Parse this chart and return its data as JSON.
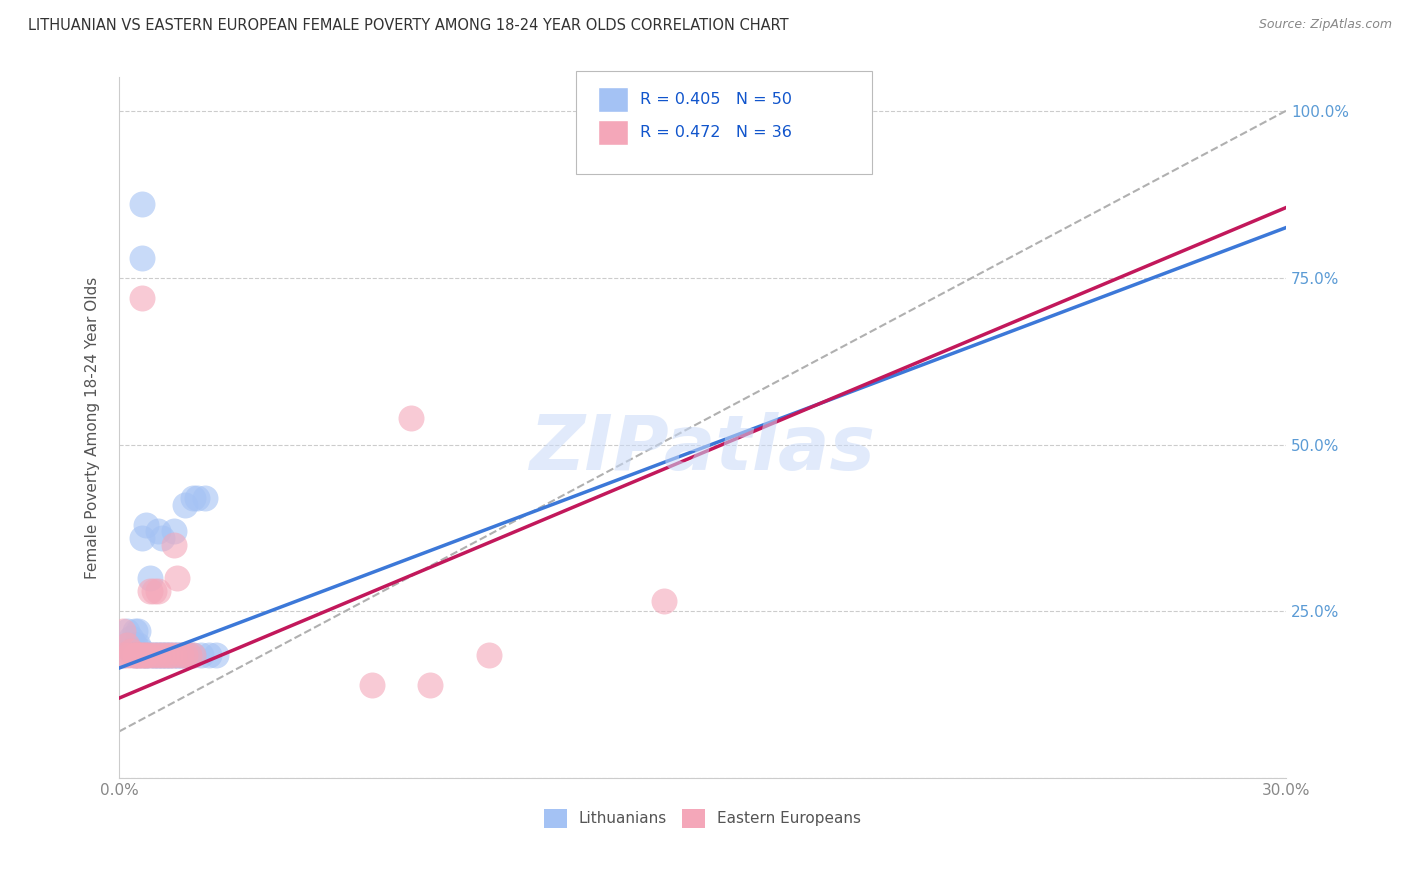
{
  "title": "LITHUANIAN VS EASTERN EUROPEAN FEMALE POVERTY AMONG 18-24 YEAR OLDS CORRELATION CHART",
  "source": "Source: ZipAtlas.com",
  "ylabel": "Female Poverty Among 18-24 Year Olds",
  "yticks": [
    0.0,
    0.25,
    0.5,
    0.75,
    1.0
  ],
  "ytick_labels": [
    "",
    "25.0%",
    "50.0%",
    "75.0%",
    "100.0%"
  ],
  "legend_blue_r": "R = 0.405",
  "legend_blue_n": "N = 50",
  "legend_pink_r": "R = 0.472",
  "legend_pink_n": "N = 36",
  "legend_label_blue": "Lithuanians",
  "legend_label_pink": "Eastern Europeans",
  "blue_color": "#a4c2f4",
  "pink_color": "#f4a7b9",
  "blue_line_color": "#3c78d8",
  "pink_line_color": "#c2185b",
  "legend_text_color": "#1155cc",
  "watermark": "ZIPatlas",
  "blue_scatter": [
    [
      0.001,
      0.185
    ],
    [
      0.002,
      0.2
    ],
    [
      0.002,
      0.22
    ],
    [
      0.003,
      0.19
    ],
    [
      0.003,
      0.21
    ],
    [
      0.004,
      0.185
    ],
    [
      0.004,
      0.22
    ],
    [
      0.004,
      0.2
    ],
    [
      0.005,
      0.185
    ],
    [
      0.005,
      0.22
    ],
    [
      0.005,
      0.2
    ],
    [
      0.006,
      0.185
    ],
    [
      0.006,
      0.19
    ],
    [
      0.006,
      0.36
    ],
    [
      0.007,
      0.185
    ],
    [
      0.007,
      0.38
    ],
    [
      0.007,
      0.185
    ],
    [
      0.008,
      0.3
    ],
    [
      0.008,
      0.185
    ],
    [
      0.009,
      0.185
    ],
    [
      0.009,
      0.185
    ],
    [
      0.01,
      0.185
    ],
    [
      0.01,
      0.37
    ],
    [
      0.01,
      0.185
    ],
    [
      0.011,
      0.185
    ],
    [
      0.011,
      0.36
    ],
    [
      0.011,
      0.185
    ],
    [
      0.012,
      0.185
    ],
    [
      0.012,
      0.185
    ],
    [
      0.013,
      0.185
    ],
    [
      0.013,
      0.185
    ],
    [
      0.014,
      0.37
    ],
    [
      0.014,
      0.185
    ],
    [
      0.015,
      0.185
    ],
    [
      0.015,
      0.185
    ],
    [
      0.016,
      0.185
    ],
    [
      0.016,
      0.185
    ],
    [
      0.017,
      0.41
    ],
    [
      0.017,
      0.185
    ],
    [
      0.018,
      0.185
    ],
    [
      0.018,
      0.185
    ],
    [
      0.019,
      0.42
    ],
    [
      0.019,
      0.185
    ],
    [
      0.02,
      0.42
    ],
    [
      0.021,
      0.185
    ],
    [
      0.022,
      0.42
    ],
    [
      0.023,
      0.185
    ],
    [
      0.006,
      0.86
    ],
    [
      0.006,
      0.78
    ],
    [
      0.025,
      0.185
    ]
  ],
  "pink_scatter": [
    [
      0.001,
      0.185
    ],
    [
      0.001,
      0.22
    ],
    [
      0.002,
      0.185
    ],
    [
      0.002,
      0.2
    ],
    [
      0.003,
      0.185
    ],
    [
      0.003,
      0.19
    ],
    [
      0.004,
      0.185
    ],
    [
      0.004,
      0.185
    ],
    [
      0.005,
      0.185
    ],
    [
      0.005,
      0.185
    ],
    [
      0.006,
      0.185
    ],
    [
      0.006,
      0.185
    ],
    [
      0.007,
      0.185
    ],
    [
      0.007,
      0.185
    ],
    [
      0.008,
      0.28
    ],
    [
      0.008,
      0.185
    ],
    [
      0.009,
      0.28
    ],
    [
      0.009,
      0.185
    ],
    [
      0.01,
      0.28
    ],
    [
      0.01,
      0.185
    ],
    [
      0.011,
      0.185
    ],
    [
      0.012,
      0.185
    ],
    [
      0.013,
      0.185
    ],
    [
      0.014,
      0.185
    ],
    [
      0.014,
      0.35
    ],
    [
      0.015,
      0.3
    ],
    [
      0.016,
      0.185
    ],
    [
      0.017,
      0.185
    ],
    [
      0.018,
      0.185
    ],
    [
      0.019,
      0.185
    ],
    [
      0.006,
      0.72
    ],
    [
      0.14,
      0.265
    ],
    [
      0.065,
      0.14
    ],
    [
      0.08,
      0.14
    ],
    [
      0.095,
      0.185
    ],
    [
      0.075,
      0.54
    ]
  ],
  "xmin": 0.0,
  "xmax": 0.3,
  "ymin": 0.0,
  "ymax": 1.05,
  "blue_slope": 2.2,
  "blue_intercept": 0.165,
  "pink_slope": 2.45,
  "pink_intercept": 0.12,
  "dashed_slope": 3.1,
  "dashed_intercept": 0.07
}
